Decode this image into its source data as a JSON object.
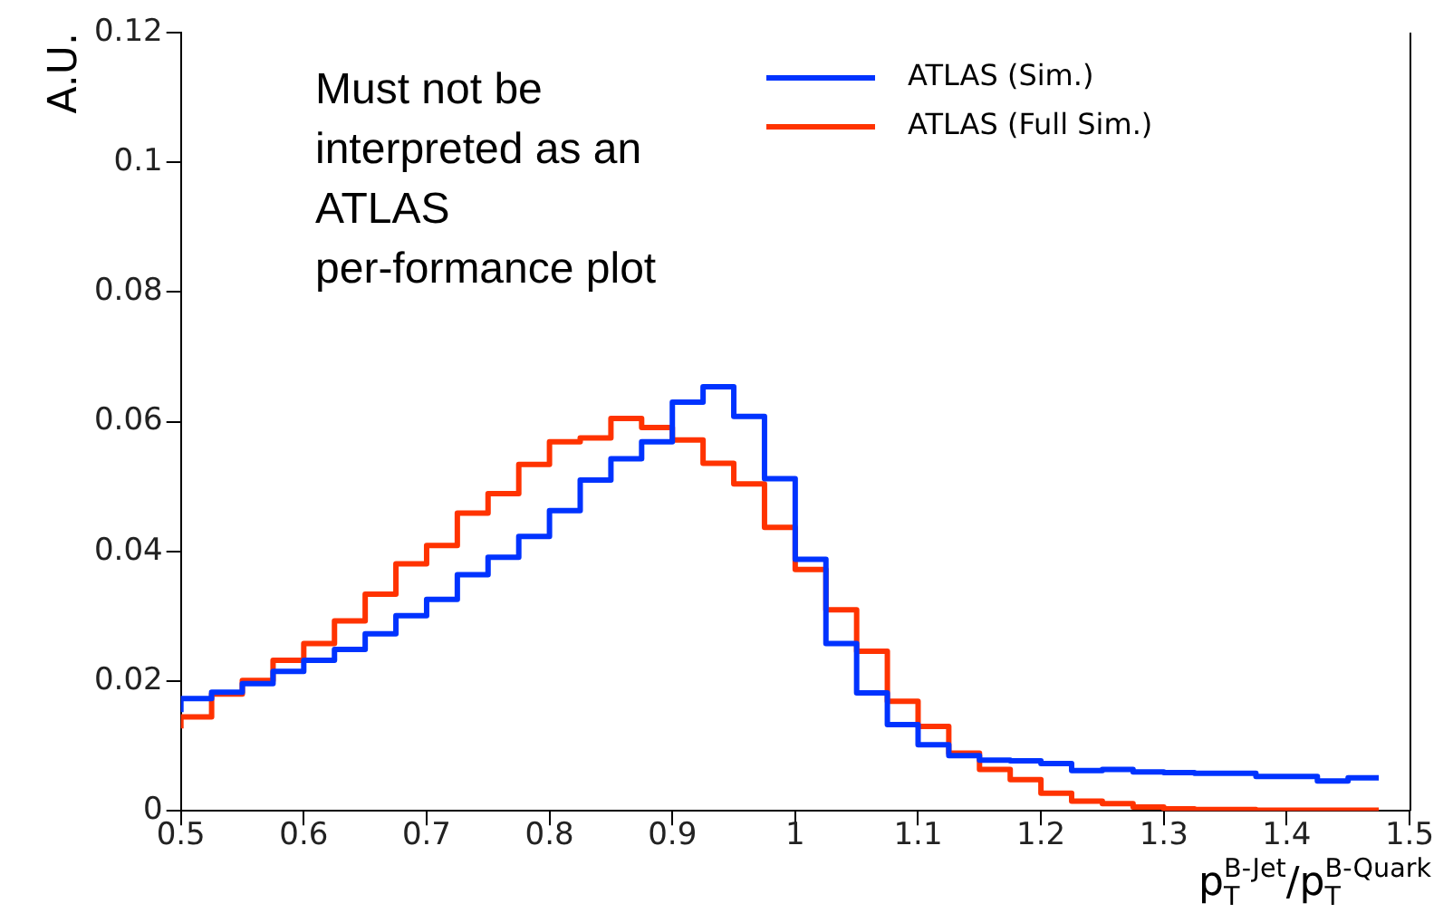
{
  "chart_data": {
    "type": "step",
    "xlabel": "p$^{B-Jet}$$_{T}$/p$^{B-Quark}$$_{T}$",
    "ylabel": "A.U.",
    "x": [
      0.5,
      0.525,
      0.55,
      0.575,
      0.6,
      0.625,
      0.65,
      0.675,
      0.7,
      0.725,
      0.75,
      0.775,
      0.8,
      0.825,
      0.85,
      0.875,
      0.9,
      0.925,
      0.95,
      0.975,
      1.0,
      1.025,
      1.05,
      1.075,
      1.1,
      1.125,
      1.15,
      1.175,
      1.2,
      1.225,
      1.25,
      1.275,
      1.3,
      1.325,
      1.35,
      1.375,
      1.4,
      1.425,
      1.45,
      1.475
    ],
    "series": [
      {
        "name": "ATLAS (Sim.)",
        "color": "#0033ff",
        "values": [
          0.0152,
          0.0173,
          0.0183,
          0.0196,
          0.0215,
          0.0232,
          0.0249,
          0.0273,
          0.0301,
          0.0326,
          0.0364,
          0.0391,
          0.0423,
          0.0463,
          0.051,
          0.0543,
          0.0569,
          0.063,
          0.0654,
          0.0608,
          0.0512,
          0.0388,
          0.0258,
          0.0182,
          0.0133,
          0.0102,
          0.0085,
          0.0078,
          0.0077,
          0.0073,
          0.0062,
          0.0064,
          0.006,
          0.0059,
          0.0058,
          0.0058,
          0.0053,
          0.0053,
          0.0046,
          0.0051
        ]
      },
      {
        "name": "ATLAS (Full Sim.)",
        "color": "#ff3300",
        "values": [
          0.0127,
          0.0145,
          0.018,
          0.0201,
          0.0232,
          0.0258,
          0.0293,
          0.0334,
          0.0381,
          0.0409,
          0.0459,
          0.0489,
          0.0534,
          0.0569,
          0.0575,
          0.0605,
          0.0591,
          0.0572,
          0.0536,
          0.0504,
          0.0437,
          0.0372,
          0.031,
          0.0246,
          0.0169,
          0.013,
          0.0089,
          0.0064,
          0.0048,
          0.0027,
          0.0015,
          0.0011,
          0.0006,
          0.0003,
          0.0002,
          0.0002,
          0.0001,
          0.0001,
          0.0001,
          0.0001
        ]
      }
    ],
    "xlim": [
      0.5,
      1.5
    ],
    "xticks": [
      0.5,
      0.6,
      0.7,
      0.8,
      0.9,
      1,
      1.1,
      1.2,
      1.3,
      1.4,
      1.5
    ],
    "ylim": [
      0,
      0.12
    ],
    "yticks": [
      0,
      0.02,
      0.04,
      0.06,
      0.08,
      0.1,
      0.12
    ],
    "legend": "top right",
    "grid": false,
    "line_style": "solid",
    "marker": "none",
    "annotations": [
      "Must not be interpreted as an ATLAS per-formance plot"
    ]
  }
}
